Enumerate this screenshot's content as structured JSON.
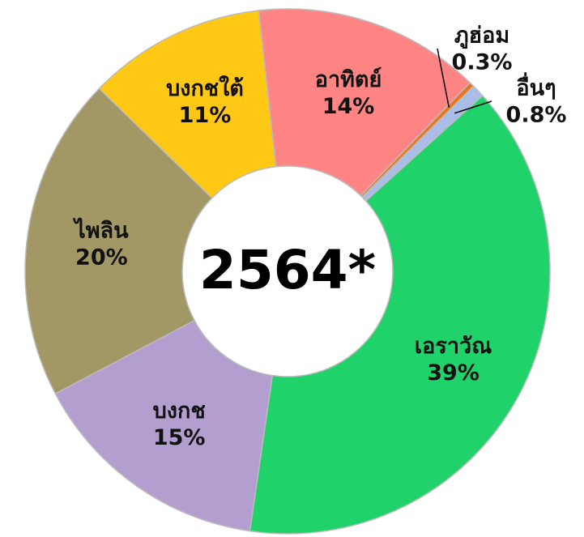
{
  "chart_data": {
    "type": "donut",
    "center_label": "2564*",
    "categories": [
      "เอราวัณ",
      "บงกช",
      "ไพลิน",
      "บงกชใต้",
      "อาทิตย์",
      "ภูฮ่อม",
      "อื่นๆ"
    ],
    "values": [
      39,
      15,
      20,
      11,
      14,
      0.3,
      0.8
    ],
    "value_labels": [
      "39%",
      "15%",
      "20%",
      "11%",
      "14%",
      "0.3%",
      "0.8%"
    ],
    "colors": [
      "#1fd26a",
      "#b39fcf",
      "#a29866",
      "#ffc814",
      "#ff8585",
      "#e8761e",
      "#a9bde6"
    ]
  }
}
